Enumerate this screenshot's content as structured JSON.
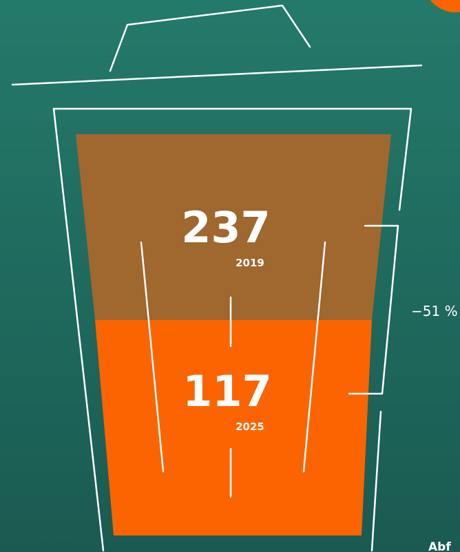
{
  "fill_2019": {
    "value": "237",
    "year": "2019"
  },
  "fill_2025": {
    "value": "117",
    "year": "2025"
  },
  "change": "−51 %",
  "footer": "Abf"
}
